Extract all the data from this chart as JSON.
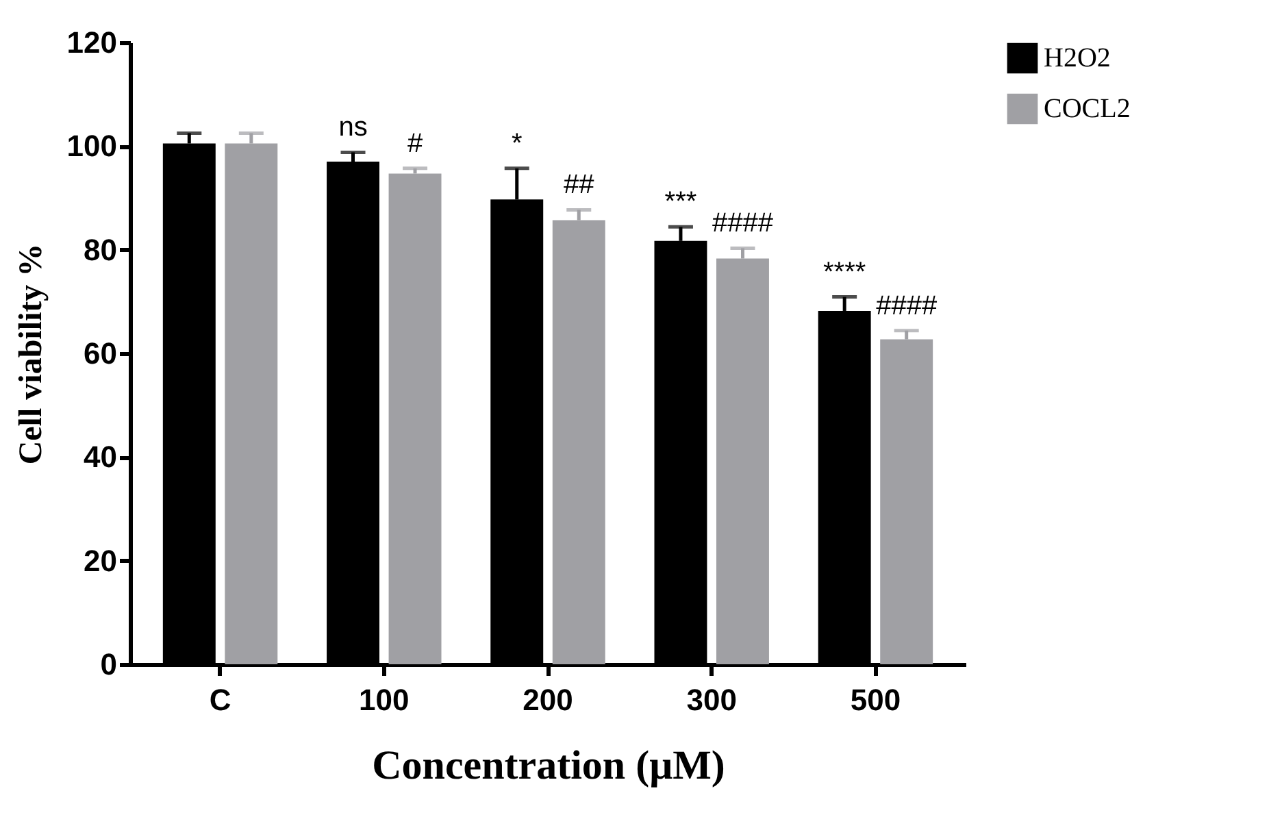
{
  "chart_data": {
    "type": "bar",
    "xlabel": "Concentration (μM)",
    "ylabel": "Cell viability %",
    "categories": [
      "C",
      "100",
      "200",
      "300",
      "500"
    ],
    "series": [
      {
        "name": "H2O2",
        "color": "#000000",
        "values": [
          100.5,
          97,
          89.7,
          81.7,
          68.2
        ],
        "errors": [
          2,
          1.8,
          6,
          2.7,
          2.7
        ]
      },
      {
        "name": "COCL2",
        "color": "#a0a0a4",
        "values": [
          100.5,
          94.7,
          85.7,
          78.3,
          62.7
        ],
        "errors": [
          2,
          1,
          2,
          2,
          1.7
        ]
      }
    ],
    "ylim": [
      0,
      120
    ],
    "yticks": [
      0,
      20,
      40,
      60,
      80,
      100,
      120
    ],
    "grid": false,
    "legend": "top right",
    "annotations": [
      "ns",
      "#",
      "*",
      "##",
      "***",
      "####",
      "****",
      "####"
    ]
  }
}
